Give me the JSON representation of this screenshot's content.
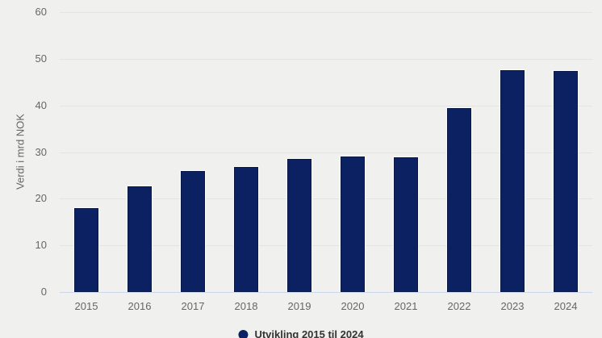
{
  "chart_data": {
    "type": "bar",
    "title": "",
    "categories": [
      "2015",
      "2016",
      "2017",
      "2018",
      "2019",
      "2020",
      "2021",
      "2022",
      "2023",
      "2024"
    ],
    "series": [
      {
        "name": "Utvikling 2015 til 2024",
        "values": [
          18,
          22.7,
          25.9,
          26.8,
          28.5,
          29,
          28.8,
          39.4,
          47.5,
          47.4
        ],
        "color": "#0c2161"
      }
    ],
    "xlabel": "",
    "ylabel": "Verdi i mrd NOK",
    "ylim": [
      0,
      60
    ],
    "yticks": [
      0,
      10,
      20,
      30,
      40,
      50,
      60
    ],
    "grid": true,
    "legend_position": "bottom-center"
  },
  "legend": {
    "label": "Utvikling 2015 til 2024",
    "marker_color": "#0c2161"
  },
  "colors": {
    "background": "#f0f1ee",
    "gridline": "#e3e5e0",
    "axis_line": "#ccd6eb",
    "bar_fill": "#0c2161",
    "tick_label": "#666666",
    "legend_text": "#333333"
  }
}
